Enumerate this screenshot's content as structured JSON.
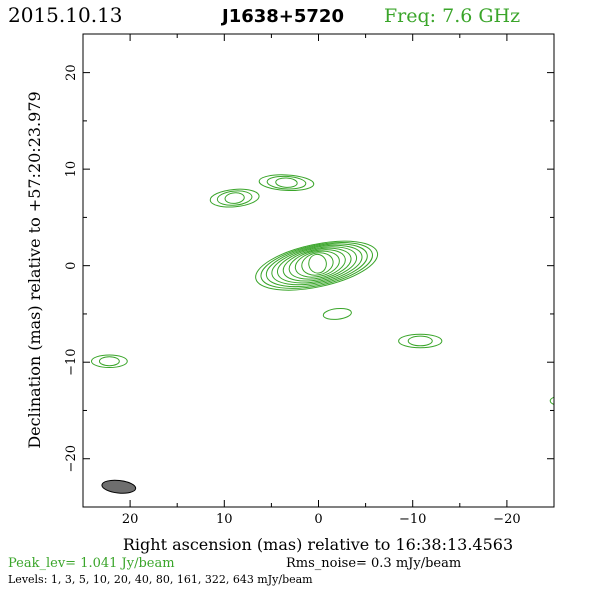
{
  "header": {
    "date": "2015.10.13",
    "source": "J1638+5720",
    "freq": "Freq: 7.6 GHz"
  },
  "footer": {
    "peak": "Peak_lev=  1.041 Jy/beam",
    "rms": "Rms_noise=  0.3 mJy/beam",
    "levels": "Levels:   1,    3,    5,   10,   20,   40,   80,  161,  322,  643 mJy/beam"
  },
  "colors": {
    "contour": "#3aa52a",
    "beam": "#6e6e6e",
    "frame": "#000000"
  },
  "chart_data": {
    "type": "contour",
    "title": "",
    "xlabel": "Right ascension (mas) relative to 16:38:13.4563",
    "ylabel": "Declination (mas) relative to +57:20:23.979",
    "xlim": [
      25,
      -25
    ],
    "ylim": [
      -25,
      24
    ],
    "xticks": [
      20,
      10,
      0,
      -10,
      -20
    ],
    "xtick_labels": [
      "20",
      "10",
      "0",
      "−10",
      "−20"
    ],
    "yticks": [
      20,
      10,
      0,
      -10,
      -20
    ],
    "ytick_labels": [
      "20",
      "10",
      "0",
      "−10",
      "−20"
    ],
    "levels_mjy_per_beam": [
      1,
      3,
      5,
      10,
      20,
      40,
      80,
      161,
      322,
      643
    ],
    "peak_jy_per_beam": 1.041,
    "rms_mjy_per_beam": 0.3,
    "beam": {
      "x": 21.2,
      "y": -22.9,
      "major": 3.6,
      "minor": 1.3,
      "pa_deg": 96
    },
    "components": [
      {
        "name": "core",
        "x": 0.1,
        "y": 0.2,
        "nlev": 10,
        "rx": 6.6,
        "ry": 2.2,
        "angle_deg": -12,
        "cx_off": 0.1,
        "cy_off": -0.2
      },
      {
        "name": "knot-ne-upper",
        "x": 3.4,
        "y": 8.6,
        "nlev": 3,
        "rx": 2.9,
        "ry": 0.8,
        "angle_deg": 3,
        "cx_off": 0.0,
        "cy_off": 0.0
      },
      {
        "name": "knot-ne-lower",
        "x": 8.9,
        "y": 7.0,
        "nlev": 3,
        "rx": 2.6,
        "ry": 0.9,
        "angle_deg": -5,
        "cx_off": 0.0,
        "cy_off": 0.0
      },
      {
        "name": "knot-small-s",
        "x": -2.0,
        "y": -5.0,
        "nlev": 1,
        "rx": 1.5,
        "ry": 0.55,
        "angle_deg": -6,
        "cx_off": 0.0,
        "cy_off": 0.0
      },
      {
        "name": "knot-sw",
        "x": -10.8,
        "y": -7.8,
        "nlev": 2,
        "rx": 2.3,
        "ry": 0.7,
        "angle_deg": 0,
        "cx_off": 0.0,
        "cy_off": 0.0
      },
      {
        "name": "knot-far-west",
        "x": 22.2,
        "y": -9.9,
        "nlev": 2,
        "rx": 1.9,
        "ry": 0.65,
        "angle_deg": 0,
        "cx_off": 0.0,
        "cy_off": 0.0
      },
      {
        "name": "edge-blob",
        "x": -25.8,
        "y": -14.0,
        "nlev": 1,
        "rx": 1.2,
        "ry": 0.5,
        "angle_deg": 0,
        "cx_off": 0.0,
        "cy_off": 0.0
      }
    ]
  }
}
